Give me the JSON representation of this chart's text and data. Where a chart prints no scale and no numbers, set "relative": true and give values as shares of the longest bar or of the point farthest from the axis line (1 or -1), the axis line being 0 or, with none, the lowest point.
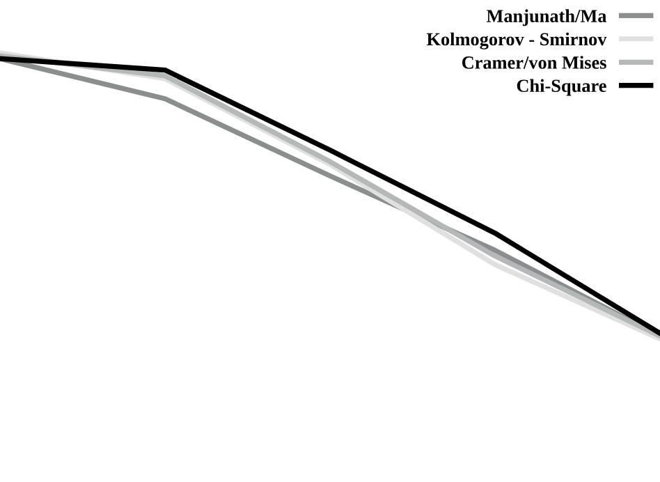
{
  "chart_data": {
    "type": "line",
    "relative": true,
    "categories": [
      null,
      null,
      null,
      null,
      null
    ],
    "series": [
      {
        "name": "Manjunath/Ma",
        "color": "#8a8e8e",
        "values": [
          0.98,
          0.84,
          0.57,
          0.31,
          0.01
        ]
      },
      {
        "name": "Kolmogorov - Smirnov",
        "color": "#e0e0e0",
        "values": [
          1,
          0.91,
          0.61,
          0.26,
          0
        ]
      },
      {
        "name": "Cramer/von Mises",
        "color": "#b4b8b8",
        "values": [
          0.99,
          0.92,
          0.62,
          0.29,
          0.01
        ]
      },
      {
        "name": "Chi-Square",
        "color": "#000000",
        "values": [
          0.98,
          0.94,
          0.66,
          0.37,
          0.02
        ]
      }
    ],
    "legend": "top right",
    "marker": "none",
    "line_style": "solid"
  }
}
